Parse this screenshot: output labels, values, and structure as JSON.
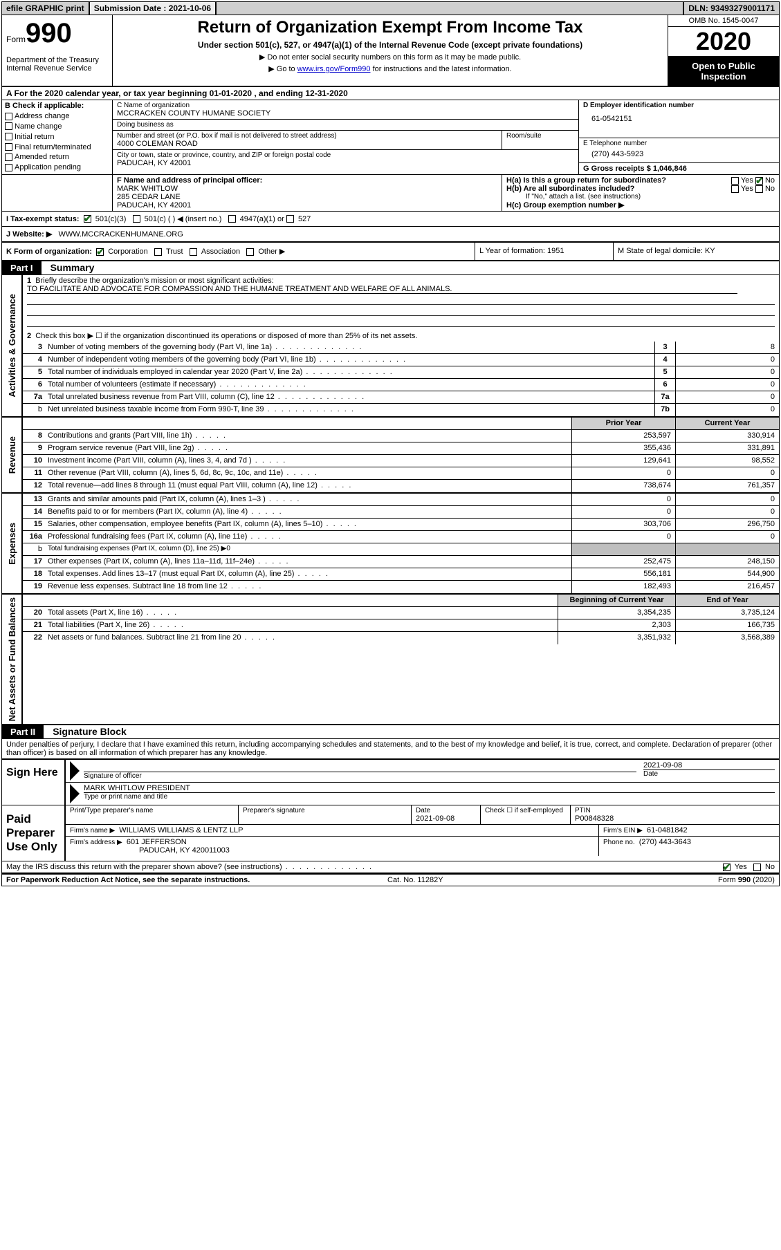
{
  "top_bar": {
    "efile": "efile GRAPHIC print",
    "submission_label": "Submission Date : 2021-10-06",
    "dln": "DLN: 93493279001171"
  },
  "header": {
    "form_prefix": "Form",
    "form_number": "990",
    "dept": "Department of the Treasury\nInternal Revenue Service",
    "title": "Return of Organization Exempt From Income Tax",
    "subtitle": "Under section 501(c), 527, or 4947(a)(1) of the Internal Revenue Code (except private foundations)",
    "note1": "▶ Do not enter social security numbers on this form as it may be made public.",
    "note2_prefix": "▶ Go to ",
    "note2_link": "www.irs.gov/Form990",
    "note2_suffix": " for instructions and the latest information.",
    "omb": "OMB No. 1545-0047",
    "year": "2020",
    "open": "Open to Public Inspection"
  },
  "row_a": "A For the 2020 calendar year, or tax year beginning 01-01-2020    , and ending 12-31-2020",
  "col_b": {
    "label": "B Check if applicable:",
    "items": [
      "Address change",
      "Name change",
      "Initial return",
      "Final return/terminated",
      "Amended return",
      "Application pending"
    ]
  },
  "org": {
    "name_label": "C Name of organization",
    "name": "MCCRACKEN COUNTY HUMANE SOCIETY",
    "dba_label": "Doing business as",
    "dba": "",
    "street_label": "Number and street (or P.O. box if mail is not delivered to street address)",
    "room_label": "Room/suite",
    "street": "4000 COLEMAN ROAD",
    "city_label": "City or town, state or province, country, and ZIP or foreign postal code",
    "city": "PADUCAH, KY 42001",
    "officer_label": "F  Name and address of principal officer:",
    "officer_name": "MARK WHITLOW",
    "officer_addr1": "285 CEDAR LANE",
    "officer_addr2": "PADUCAH, KY  42001"
  },
  "col_d": {
    "ein_label": "D Employer identification number",
    "ein": "61-0542151",
    "phone_label": "E Telephone number",
    "phone": "(270) 443-5923",
    "gross_label": "G Gross receipts $ 1,046,846"
  },
  "h": {
    "ha": "H(a)  Is this a group return for subordinates?",
    "hb": "H(b)  Are all subordinates included?",
    "hc_note": "If \"No,\" attach a list. (see instructions)",
    "hc": "H(c)  Group exemption number ▶"
  },
  "row_i": {
    "label": "I  Tax-exempt status:",
    "opt1": "501(c)(3)",
    "opt2": "501(c) (   ) ◀ (insert no.)",
    "opt3": "4947(a)(1) or",
    "opt4": "527"
  },
  "row_j": {
    "label": "J   Website: ▶",
    "value": "WWW.MCCRACKENHUMANE.ORG"
  },
  "row_k": {
    "k1_label": "K Form of organization:",
    "corp": "Corporation",
    "trust": "Trust",
    "assoc": "Association",
    "other": "Other ▶",
    "l": "L Year of formation: 1951",
    "m": "M State of legal domicile: KY"
  },
  "part1": {
    "bar": "Part I",
    "title": "Summary"
  },
  "summary": {
    "l1_label": "Briefly describe the organization's mission or most significant activities:",
    "l1_text": "TO FACILITATE AND ADVOCATE FOR COMPASSION AND THE HUMANE TREATMENT AND WELFARE OF ALL ANIMALS.",
    "l2": "Check this box ▶ ☐  if the organization discontinued its operations or disposed of more than 25% of its net assets.",
    "rows_ag": [
      {
        "n": "3",
        "desc": "Number of voting members of the governing body (Part VI, line 1a)",
        "box": "3",
        "val": "8"
      },
      {
        "n": "4",
        "desc": "Number of independent voting members of the governing body (Part VI, line 1b)",
        "box": "4",
        "val": "0"
      },
      {
        "n": "5",
        "desc": "Total number of individuals employed in calendar year 2020 (Part V, line 2a)",
        "box": "5",
        "val": "0"
      },
      {
        "n": "6",
        "desc": "Total number of volunteers (estimate if necessary)",
        "box": "6",
        "val": "0"
      },
      {
        "n": "7a",
        "desc": "Total unrelated business revenue from Part VIII, column (C), line 12",
        "box": "7a",
        "val": "0"
      },
      {
        "n": "b",
        "desc": "Net unrelated business taxable income from Form 990-T, line 39",
        "box": "7b",
        "val": "0",
        "sub": true
      }
    ],
    "hdr_prior": "Prior Year",
    "hdr_curr": "Current Year",
    "revenue": [
      {
        "n": "8",
        "desc": "Contributions and grants (Part VIII, line 1h)",
        "p": "253,597",
        "c": "330,914"
      },
      {
        "n": "9",
        "desc": "Program service revenue (Part VIII, line 2g)",
        "p": "355,436",
        "c": "331,891"
      },
      {
        "n": "10",
        "desc": "Investment income (Part VIII, column (A), lines 3, 4, and 7d )",
        "p": "129,641",
        "c": "98,552"
      },
      {
        "n": "11",
        "desc": "Other revenue (Part VIII, column (A), lines 5, 6d, 8c, 9c, 10c, and 11e)",
        "p": "0",
        "c": "0"
      },
      {
        "n": "12",
        "desc": "Total revenue—add lines 8 through 11 (must equal Part VIII, column (A), line 12)",
        "p": "738,674",
        "c": "761,357"
      }
    ],
    "expenses": [
      {
        "n": "13",
        "desc": "Grants and similar amounts paid (Part IX, column (A), lines 1–3 )",
        "p": "0",
        "c": "0"
      },
      {
        "n": "14",
        "desc": "Benefits paid to or for members (Part IX, column (A), line 4)",
        "p": "0",
        "c": "0"
      },
      {
        "n": "15",
        "desc": "Salaries, other compensation, employee benefits (Part IX, column (A), lines 5–10)",
        "p": "303,706",
        "c": "296,750"
      },
      {
        "n": "16a",
        "desc": "Professional fundraising fees (Part IX, column (A), line 11e)",
        "p": "0",
        "c": "0"
      },
      {
        "n": "b",
        "desc": "Total fundraising expenses (Part IX, column (D), line 25) ▶0",
        "p": "__shaded__",
        "c": "__shaded__",
        "sub": true,
        "small": true
      },
      {
        "n": "17",
        "desc": "Other expenses (Part IX, column (A), lines 11a–11d, 11f–24e)",
        "p": "252,475",
        "c": "248,150"
      },
      {
        "n": "18",
        "desc": "Total expenses. Add lines 13–17 (must equal Part IX, column (A), line 25)",
        "p": "556,181",
        "c": "544,900"
      },
      {
        "n": "19",
        "desc": "Revenue less expenses. Subtract line 18 from line 12",
        "p": "182,493",
        "c": "216,457"
      }
    ],
    "hdr_beg": "Beginning of Current Year",
    "hdr_end": "End of Year",
    "net": [
      {
        "n": "20",
        "desc": "Total assets (Part X, line 16)",
        "p": "3,354,235",
        "c": "3,735,124"
      },
      {
        "n": "21",
        "desc": "Total liabilities (Part X, line 26)",
        "p": "2,303",
        "c": "166,735"
      },
      {
        "n": "22",
        "desc": "Net assets or fund balances. Subtract line 21 from line 20",
        "p": "3,351,932",
        "c": "3,568,389"
      }
    ],
    "side_ag": "Activities & Governance",
    "side_rev": "Revenue",
    "side_exp": "Expenses",
    "side_net": "Net Assets or Fund Balances"
  },
  "part2": {
    "bar": "Part II",
    "title": "Signature Block"
  },
  "sig": {
    "perjury": "Under penalties of perjury, I declare that I have examined this return, including accompanying schedules and statements, and to the best of my knowledge and belief, it is true, correct, and complete. Declaration of preparer (other than officer) is based on all information of which preparer has any knowledge.",
    "sign_here": "Sign Here",
    "sig_officer": "Signature of officer",
    "sig_date": "2021-09-08",
    "date_label": "Date",
    "name_title": "MARK WHITLOW PRESIDENT",
    "name_label": "Type or print name and title",
    "paid": "Paid Preparer Use Only",
    "prep_name_label": "Print/Type preparer's name",
    "prep_sig_label": "Preparer's signature",
    "prep_date_label": "Date",
    "prep_date": "2021-09-08",
    "self_emp": "Check ☐ if self-employed",
    "ptin_label": "PTIN",
    "ptin": "P00848328",
    "firm_name_label": "Firm's name    ▶",
    "firm_name": "WILLIAMS WILLIAMS & LENTZ LLP",
    "firm_ein_label": "Firm's EIN ▶",
    "firm_ein": "61-0481842",
    "firm_addr_label": "Firm's address ▶",
    "firm_addr1": "601 JEFFERSON",
    "firm_addr2": "PADUCAH, KY  420011003",
    "firm_phone_label": "Phone no.",
    "firm_phone": "(270) 443-3643",
    "discuss": "May the IRS discuss this return with the preparer shown above? (see instructions)",
    "yes": "Yes",
    "no": "No"
  },
  "footer": {
    "left": "For Paperwork Reduction Act Notice, see the separate instructions.",
    "mid": "Cat. No. 11282Y",
    "right": "Form 990 (2020)"
  },
  "colors": {
    "header_gray": "#cfcfcf",
    "shaded": "#bfbfbf",
    "link": "#0000cc",
    "check_green": "#1a6b1a"
  },
  "fonts": {
    "base_size_pt": 8,
    "title_size_pt": 18
  }
}
